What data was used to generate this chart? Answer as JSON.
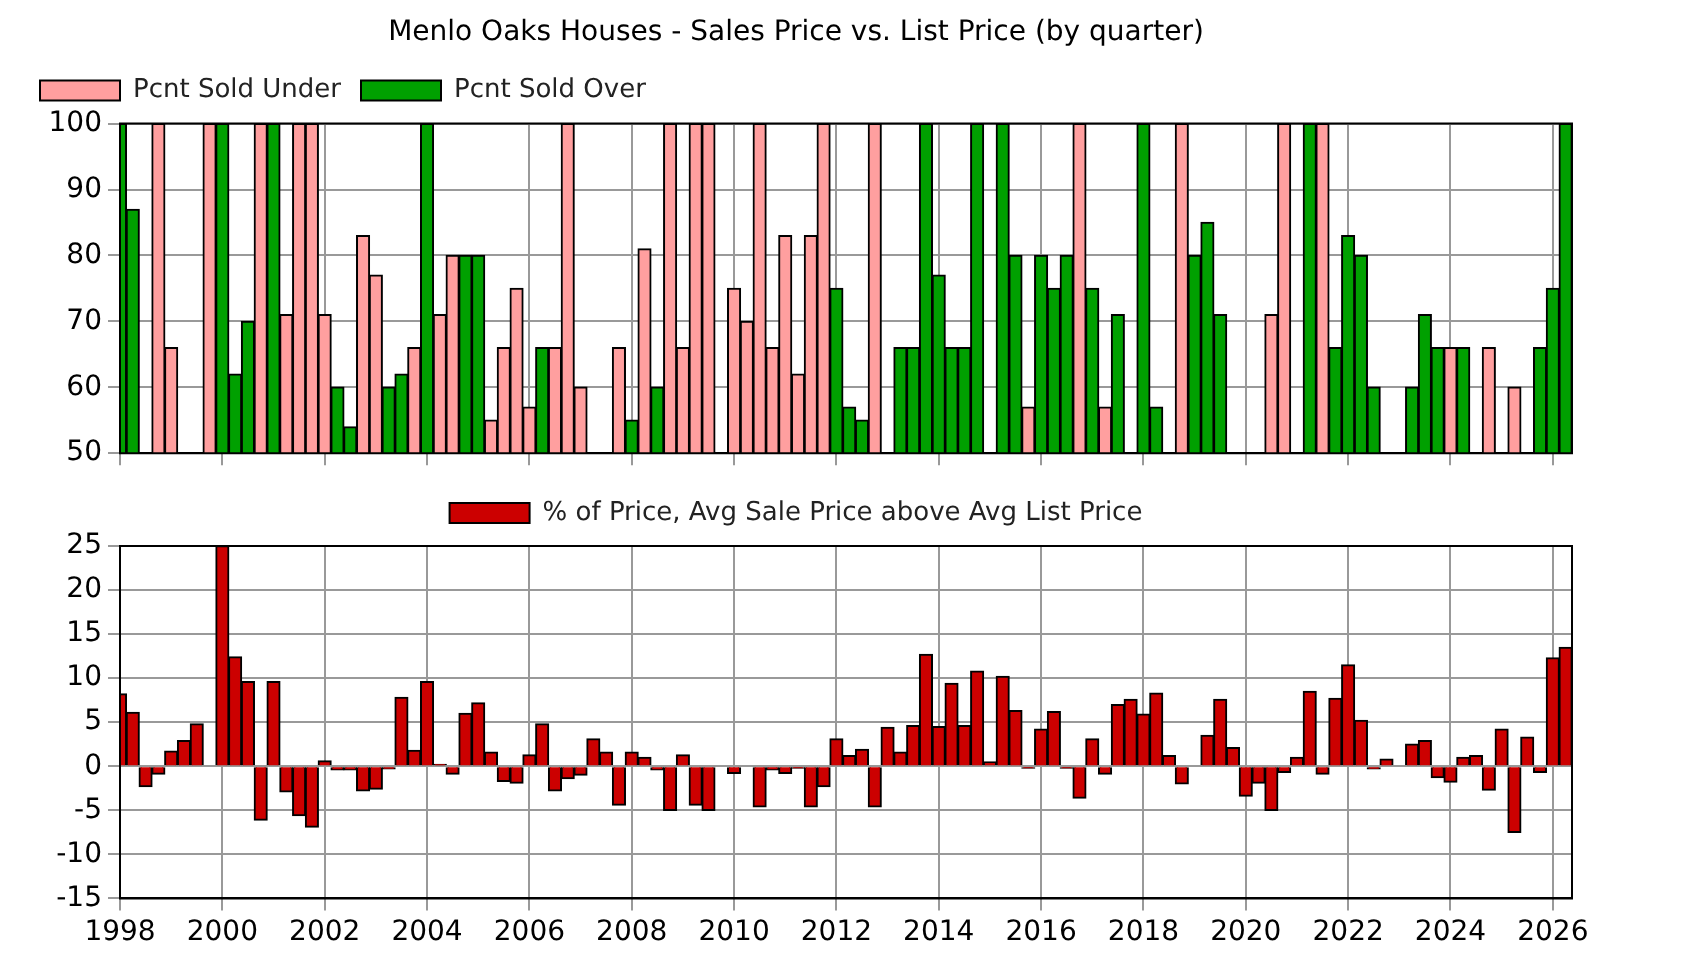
{
  "chart_data": [
    {
      "type": "bar",
      "title": "Menlo Oaks Houses - Sales Price vs. List Price (by quarter)",
      "x": [
        1998,
        1998.25,
        1998.5,
        1998.75,
        1999,
        1999.25,
        1999.5,
        1999.75,
        2000,
        2000.25,
        2000.5,
        2000.75,
        2001,
        2001.25,
        2001.5,
        2001.75,
        2002,
        2002.25,
        2002.5,
        2002.75,
        2003,
        2003.25,
        2003.5,
        2003.75,
        2004,
        2004.25,
        2004.5,
        2004.75,
        2005,
        2005.25,
        2005.5,
        2005.75,
        2006,
        2006.25,
        2006.5,
        2006.75,
        2007,
        2007.25,
        2007.5,
        2007.75,
        2008,
        2008.25,
        2008.5,
        2008.75,
        2009,
        2009.25,
        2009.5,
        2009.75,
        2010,
        2010.25,
        2010.5,
        2010.75,
        2011,
        2011.25,
        2011.5,
        2011.75,
        2012,
        2012.25,
        2012.5,
        2012.75,
        2013,
        2013.25,
        2013.5,
        2013.75,
        2014,
        2014.25,
        2014.5,
        2014.75,
        2015,
        2015.25,
        2015.5,
        2015.75,
        2016,
        2016.25,
        2016.5,
        2016.75,
        2017,
        2017.25,
        2017.5,
        2017.75,
        2018,
        2018.25,
        2018.5,
        2018.75,
        2019,
        2019.25,
        2019.5,
        2019.75,
        2020,
        2020.25,
        2020.5,
        2020.75,
        2021,
        2021.25,
        2021.5,
        2021.75,
        2022,
        2022.25,
        2022.5,
        2022.75,
        2023,
        2023.25,
        2023.5,
        2023.75,
        2024,
        2024.25,
        2024.5,
        2024.75,
        2025,
        2025.25,
        2025.5,
        2025.75,
        2026,
        2026.25
      ],
      "series": [
        {
          "name": "Pcnt Sold Under",
          "color": "#ff9f9f",
          "values": [
            null,
            null,
            null,
            100,
            66,
            null,
            null,
            100,
            null,
            null,
            null,
            100,
            null,
            71,
            100,
            100,
            71,
            null,
            null,
            83,
            77,
            null,
            null,
            66,
            null,
            71,
            80,
            null,
            null,
            55,
            66,
            75,
            57,
            null,
            66,
            100,
            60,
            null,
            null,
            66,
            null,
            81,
            null,
            100,
            66,
            100,
            100,
            null,
            75,
            70,
            100,
            66,
            83,
            62,
            83,
            100,
            null,
            null,
            null,
            100,
            null,
            null,
            null,
            null,
            null,
            null,
            null,
            null,
            null,
            null,
            null,
            57,
            null,
            null,
            null,
            100,
            null,
            57,
            null,
            null,
            null,
            null,
            null,
            100,
            null,
            null,
            null,
            null,
            null,
            null,
            71,
            100,
            null,
            null,
            100,
            null,
            null,
            null,
            null,
            null,
            null,
            null,
            null,
            null,
            66,
            null,
            null,
            66,
            null,
            60,
            null,
            null,
            null,
            null
          ]
        },
        {
          "name": "Pcnt Sold Over",
          "color": "#00a000",
          "values": [
            100,
            87,
            null,
            null,
            null,
            null,
            null,
            null,
            100,
            62,
            70,
            null,
            100,
            null,
            null,
            null,
            null,
            60,
            54,
            null,
            null,
            60,
            62,
            null,
            100,
            null,
            null,
            80,
            80,
            null,
            null,
            null,
            null,
            66,
            null,
            null,
            null,
            null,
            null,
            null,
            55,
            null,
            60,
            null,
            null,
            null,
            null,
            null,
            null,
            null,
            null,
            null,
            null,
            null,
            null,
            null,
            75,
            57,
            55,
            null,
            null,
            66,
            66,
            100,
            77,
            66,
            66,
            100,
            null,
            100,
            80,
            null,
            80,
            75,
            80,
            null,
            75,
            null,
            71,
            null,
            100,
            57,
            null,
            null,
            80,
            85,
            71,
            null,
            null,
            null,
            null,
            null,
            null,
            100,
            null,
            66,
            83,
            80,
            60,
            null,
            null,
            60,
            71,
            66,
            null,
            66,
            null,
            null,
            null,
            null,
            null,
            66,
            75,
            100
          ]
        }
      ],
      "xlim": [
        1998,
        2026.375
      ],
      "xticks": [
        1998,
        2000,
        2002,
        2004,
        2006,
        2008,
        2010,
        2012,
        2014,
        2016,
        2018,
        2020,
        2022,
        2024,
        2026
      ],
      "ylim": [
        50,
        100
      ],
      "yticks": [
        50,
        60,
        70,
        80,
        90,
        100
      ],
      "grid": true,
      "legend": "top left",
      "tick_labels": "y"
    },
    {
      "type": "bar",
      "x": [
        1998,
        1998.25,
        1998.5,
        1998.75,
        1999,
        1999.25,
        1999.5,
        1999.75,
        2000,
        2000.25,
        2000.5,
        2000.75,
        2001,
        2001.25,
        2001.5,
        2001.75,
        2002,
        2002.25,
        2002.5,
        2002.75,
        2003,
        2003.25,
        2003.5,
        2003.75,
        2004,
        2004.25,
        2004.5,
        2004.75,
        2005,
        2005.25,
        2005.5,
        2005.75,
        2006,
        2006.25,
        2006.5,
        2006.75,
        2007,
        2007.25,
        2007.5,
        2007.75,
        2008,
        2008.25,
        2008.5,
        2008.75,
        2009,
        2009.25,
        2009.5,
        2009.75,
        2010,
        2010.25,
        2010.5,
        2010.75,
        2011,
        2011.25,
        2011.5,
        2011.75,
        2012,
        2012.25,
        2012.5,
        2012.75,
        2013,
        2013.25,
        2013.5,
        2013.75,
        2014,
        2014.25,
        2014.5,
        2014.75,
        2015,
        2015.25,
        2015.5,
        2015.75,
        2016,
        2016.25,
        2016.5,
        2016.75,
        2017,
        2017.25,
        2017.5,
        2017.75,
        2018,
        2018.25,
        2018.5,
        2018.75,
        2019,
        2019.25,
        2019.5,
        2019.75,
        2020,
        2020.25,
        2020.5,
        2020.75,
        2021,
        2021.25,
        2021.5,
        2021.75,
        2022,
        2022.25,
        2022.5,
        2022.75,
        2023,
        2023.25,
        2023.5,
        2023.75,
        2024,
        2024.25,
        2024.5,
        2024.75,
        2025,
        2025.25,
        2025.5,
        2025.75,
        2026,
        2026.25
      ],
      "series": [
        {
          "name": "% of Price, Avg Sale Price above Avg List Price",
          "color": "#cc0000",
          "values": [
            8.2,
            6.1,
            -2.3,
            -0.9,
            1.7,
            2.9,
            4.8,
            null,
            25,
            12.4,
            9.6,
            -6.1,
            9.6,
            -2.9,
            -5.6,
            -6.9,
            0.6,
            -0.4,
            -0.4,
            -2.8,
            -2.6,
            -0.3,
            7.8,
            1.8,
            9.6,
            0.2,
            -0.9,
            6.0,
            7.2,
            1.6,
            -1.7,
            -1.9,
            1.3,
            4.8,
            -2.8,
            -1.4,
            -1.0,
            3.1,
            1.6,
            -4.4,
            1.6,
            1.0,
            -0.4,
            -5.0,
            1.3,
            -4.4,
            -5.0,
            null,
            -0.8,
            null,
            -4.6,
            -0.4,
            -0.8,
            -0.2,
            -4.6,
            -2.3,
            3.1,
            1.2,
            1.9,
            -4.6,
            4.4,
            1.6,
            4.6,
            12.7,
            4.5,
            9.4,
            4.6,
            10.8,
            0.5,
            10.2,
            6.3,
            -0.2,
            4.2,
            6.2,
            -0.2,
            -3.6,
            3.1,
            -0.9,
            7.0,
            7.6,
            5.9,
            8.3,
            1.2,
            -2.0,
            null,
            3.5,
            7.6,
            2.1,
            -3.4,
            -1.9,
            -5.0,
            -0.7,
            1.0,
            8.5,
            -0.9,
            7.7,
            11.5,
            5.2,
            -0.3,
            0.8,
            null,
            2.5,
            2.9,
            -1.3,
            -1.8,
            1.0,
            1.2,
            -2.7,
            4.2,
            -7.5,
            3.3,
            -0.7,
            12.3,
            13.5
          ]
        }
      ],
      "xlim": [
        1998,
        2026.375
      ],
      "xticks": [
        1998,
        2000,
        2002,
        2004,
        2006,
        2008,
        2010,
        2012,
        2014,
        2016,
        2018,
        2020,
        2022,
        2024,
        2026
      ],
      "ylim": [
        -15,
        25
      ],
      "yticks": [
        -15,
        -10,
        -5,
        0,
        5,
        10,
        15,
        20,
        25
      ],
      "grid": true,
      "legend": "top"
    }
  ]
}
